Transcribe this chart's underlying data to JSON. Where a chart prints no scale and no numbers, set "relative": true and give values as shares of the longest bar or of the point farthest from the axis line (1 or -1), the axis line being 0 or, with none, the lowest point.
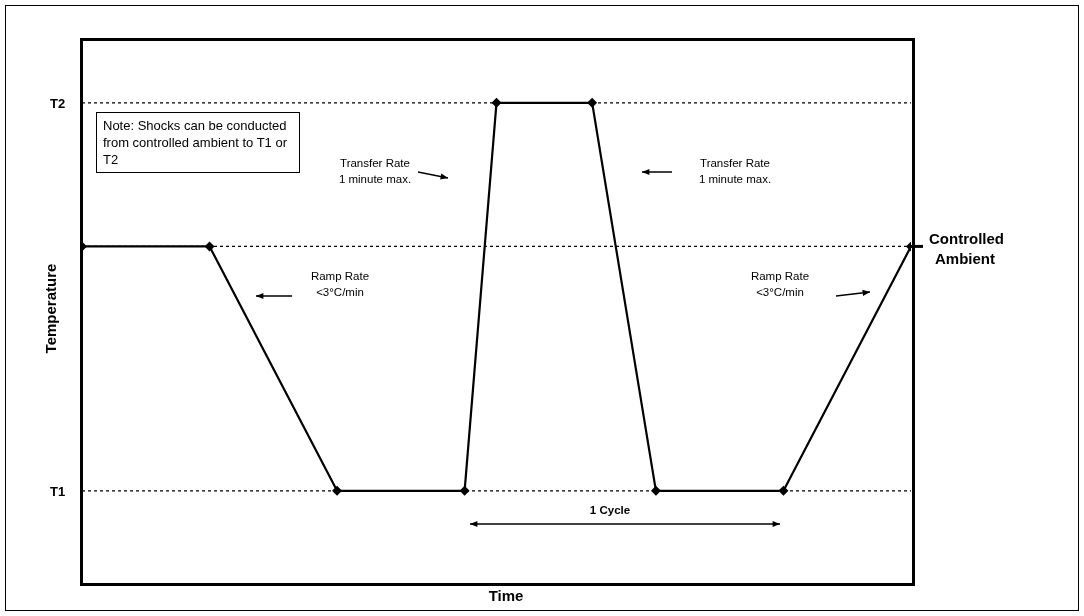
{
  "chart_data": {
    "type": "line",
    "relative": true,
    "ylabel": "Temperature",
    "categories": [
      null,
      null,
      null,
      null,
      null,
      null,
      null,
      null,
      null,
      null,
      null,
      null,
      null,
      null,
      null,
      null,
      null,
      null,
      null,
      null,
      null,
      null,
      null,
      null,
      null,
      null,
      null
    ],
    "values": [
      0.63,
      null,
      null,
      null,
      0.63,
      null,
      null,
      null,
      0,
      null,
      null,
      null,
      0,
      1,
      null,
      null,
      1,
      null,
      0,
      null,
      null,
      null,
      0,
      null,
      null,
      null,
      0.63
    ],
    "color": "#000000",
    "marker": "diamond",
    "line_style": "solid",
    "ref_lines": [
      {
        "axis": "y",
        "value": 1,
        "label": "T2",
        "color": "#000000",
        "line_style": "dotted"
      },
      {
        "axis": "y",
        "value": 0.63,
        "label": "Controlled Ambient",
        "color": "#000000",
        "line_style": "dotted"
      },
      {
        "axis": "y",
        "value": 0,
        "label": "T1",
        "color": "#000000",
        "line_style": "dotted"
      }
    ],
    "annotations": [
      "Note:  Shocks can be conducted from controlled ambient to T1 or T2",
      "Transfer Rate\n1 minute max.",
      "Transfer Rate\n1 minute max.",
      "Ramp Rate\n<3°C/min",
      "Ramp Rate\n<3°C/min",
      "1 Cycle",
      "Time"
    ]
  }
}
